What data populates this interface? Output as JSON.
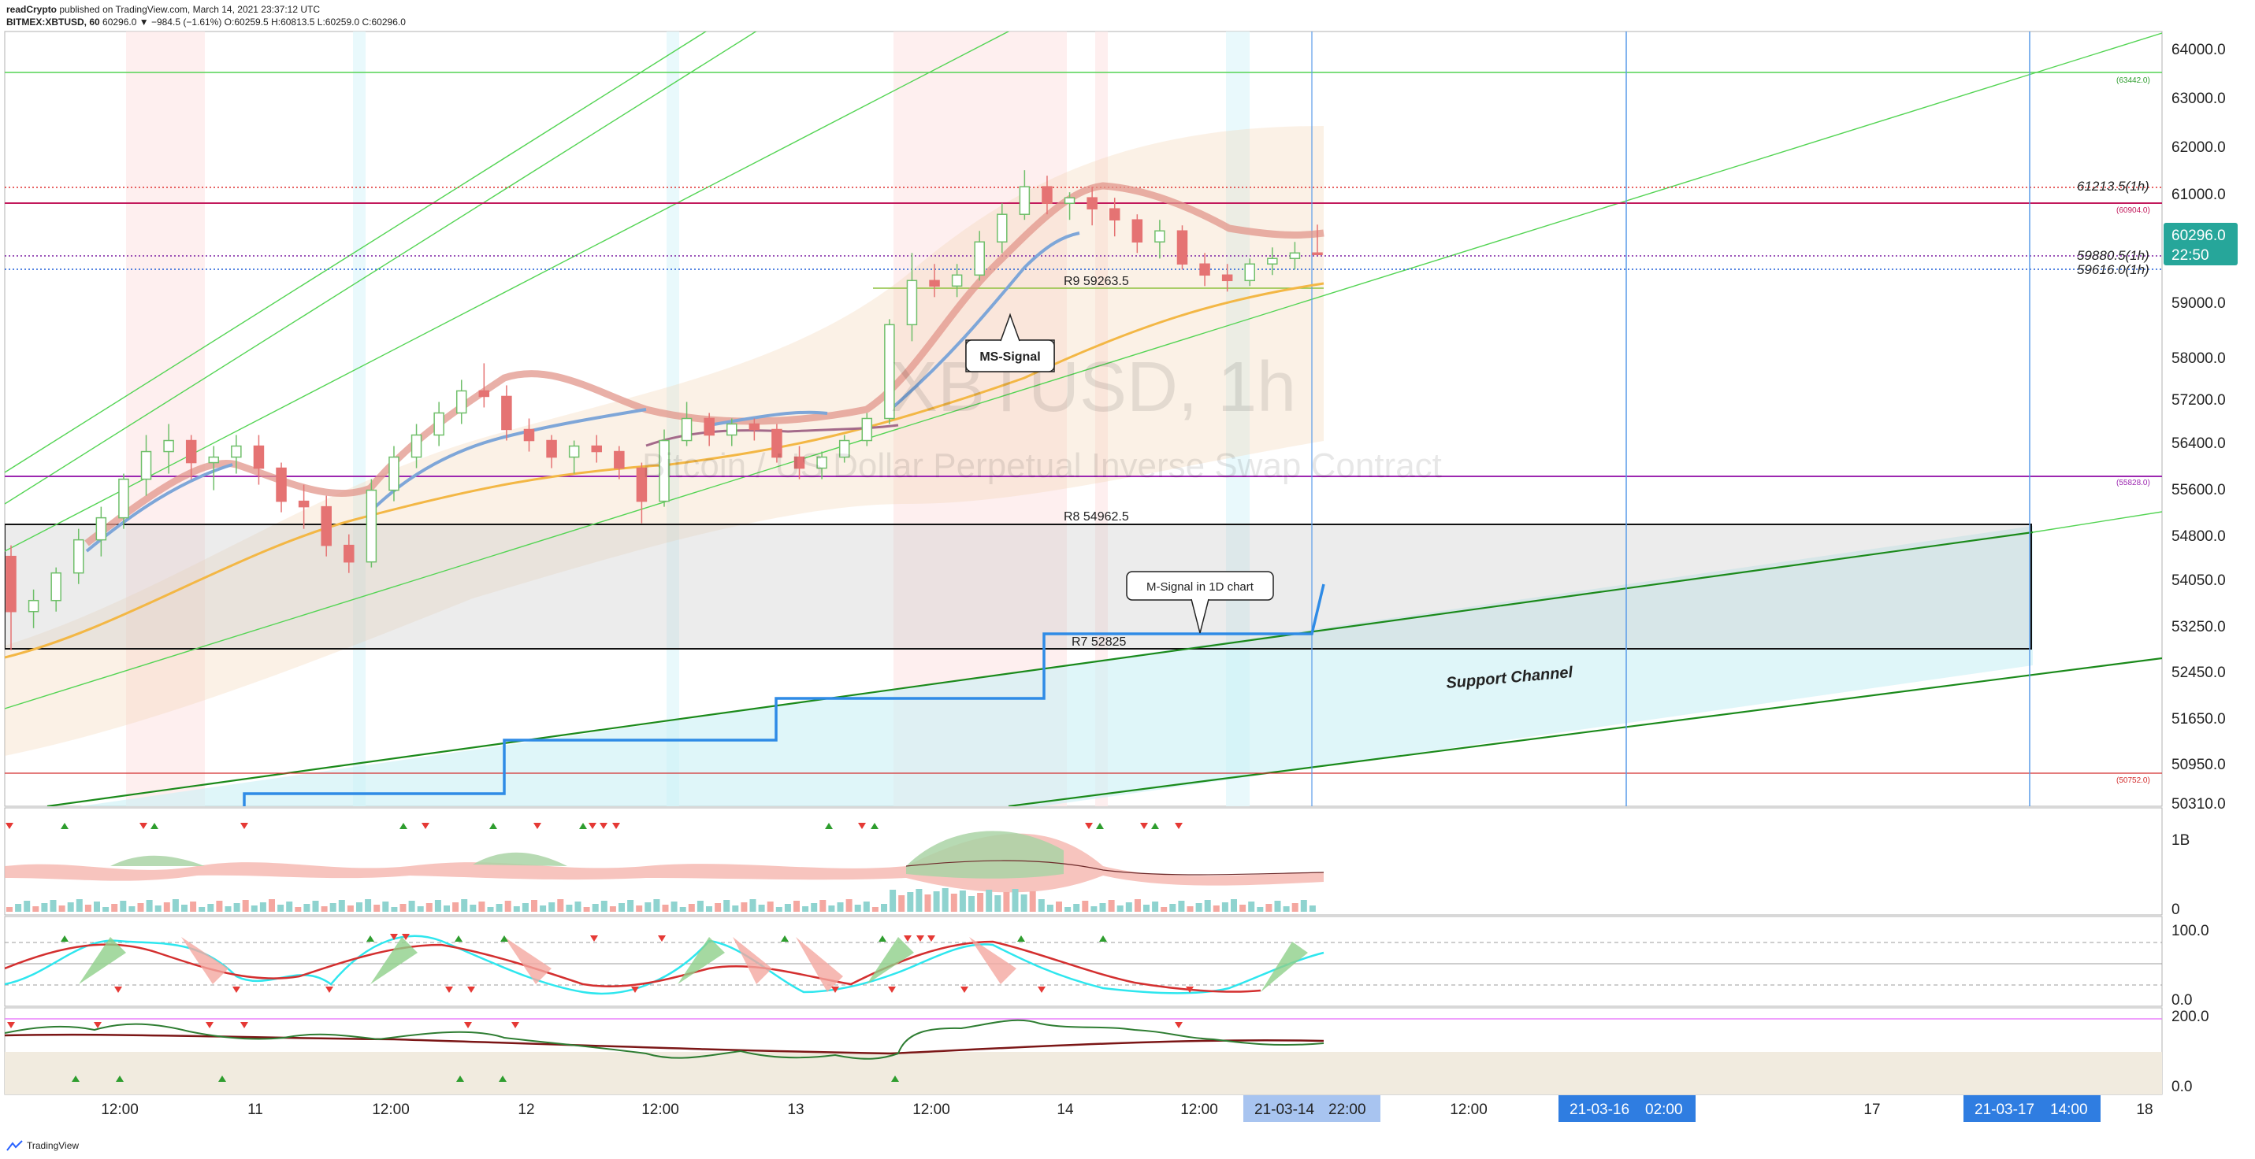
{
  "header": {
    "publisher": "readCrypto",
    "published_text": "published on TradingView.com, March 14, 2021 23:37:12 UTC",
    "symbol_line": "BITMEX:XBTUSD, 60",
    "ohlc_line": "60296.0 ▼ −984.5 (−1.61%) O:60259.5 H:60813.5 L:60259.0 C:60296.0"
  },
  "watermark": {
    "symbol": "XBTUSD, 1h",
    "description": "Bitcoin / US Dollar Perpetual Inverse Swap Contract"
  },
  "price_axis": {
    "ticks": [
      "64000.0",
      "63000.0",
      "62000.0",
      "61000.0",
      "60000.0",
      "59000.0",
      "58000.0",
      "57200.0",
      "56400.0",
      "55600.0",
      "54800.0",
      "54050.0",
      "53250.0",
      "52450.0",
      "51650.0",
      "50950.0",
      "50310.0"
    ],
    "current_price": "60296.0",
    "countdown": "22:50"
  },
  "time_axis": {
    "labels": [
      "12:00",
      "11",
      "12:00",
      "12",
      "12:00",
      "13",
      "12:00",
      "14",
      "12:00",
      "12:00",
      "17",
      "18"
    ],
    "highlight_cursor": "21-03-14",
    "highlight_cursor_time": "22:00",
    "highlight_1": "21-03-16",
    "highlight_1_time": "02:00",
    "highlight_2": "21-03-17",
    "highlight_2_time": "14:00"
  },
  "levels": {
    "level_63442": "(63442.0)",
    "level_61213": "61213.5(1h)",
    "level_60904": "(60904.0)",
    "level_59880": "59880.5(1h)",
    "level_59616": "59616.0(1h)",
    "level_55828": "(55828.0)",
    "level_50752": "(50752.0)",
    "r9": "R9 59263.5",
    "r8": "R8 54962.5",
    "r7": "R7 52825"
  },
  "annotations": {
    "ms_signal": "MS-Signal",
    "m_signal": "M-Signal in 1D chart",
    "support_channel": "Support Channel"
  },
  "indicator_axes": {
    "volume_top": "1B",
    "volume_bottom": "0",
    "osc1_top": "100.0",
    "osc1_bottom": "0.0",
    "osc2_top": "200.0",
    "osc2_bottom": "0.0"
  },
  "footer": {
    "brand": "TradingView"
  },
  "colors": {
    "up": "#4caf50",
    "down": "#ef5350",
    "cursor_tag": "#a8c4f0",
    "highlight_tag": "#2f7de1",
    "current_price_tag": "#26a69a",
    "ms_signal_line": "#7ea6d8",
    "m_signal_line": "#2f8be6"
  },
  "chart_data": {
    "type": "candlestick",
    "symbol": "XBTUSD",
    "timeframe": "1h",
    "ylim": [
      50000,
      64300
    ],
    "ohlc": [
      [
        54800,
        55000,
        53100,
        53800
      ],
      [
        53800,
        54200,
        53500,
        54000
      ],
      [
        54000,
        54600,
        53800,
        54500
      ],
      [
        54500,
        55300,
        54300,
        55100
      ],
      [
        55100,
        55700,
        54800,
        55500
      ],
      [
        55500,
        56300,
        55300,
        56200
      ],
      [
        56200,
        57000,
        55900,
        56700
      ],
      [
        56700,
        57200,
        56300,
        56900
      ],
      [
        56900,
        57000,
        56200,
        56500
      ],
      [
        56500,
        56800,
        56000,
        56600
      ],
      [
        56600,
        57000,
        56300,
        56800
      ],
      [
        56800,
        57000,
        56100,
        56400
      ],
      [
        56400,
        56500,
        55600,
        55800
      ],
      [
        55800,
        56100,
        55300,
        55700
      ],
      [
        55700,
        55900,
        54800,
        55000
      ],
      [
        55000,
        55200,
        54500,
        54700
      ],
      [
        54700,
        56200,
        54600,
        56000
      ],
      [
        56000,
        56800,
        55800,
        56600
      ],
      [
        56600,
        57200,
        56400,
        57000
      ],
      [
        57000,
        57600,
        56800,
        57400
      ],
      [
        57400,
        58000,
        57200,
        57800
      ],
      [
        57800,
        58300,
        57500,
        57700
      ],
      [
        57700,
        57900,
        56900,
        57100
      ],
      [
        57100,
        57300,
        56700,
        56900
      ],
      [
        56900,
        57000,
        56400,
        56600
      ],
      [
        56600,
        56900,
        56300,
        56800
      ],
      [
        56800,
        57000,
        56500,
        56700
      ],
      [
        56700,
        56800,
        56200,
        56400
      ],
      [
        56400,
        56500,
        55400,
        55800
      ],
      [
        55800,
        57100,
        55700,
        56900
      ],
      [
        56900,
        57600,
        56800,
        57300
      ],
      [
        57300,
        57400,
        56800,
        57000
      ],
      [
        57000,
        57300,
        56800,
        57200
      ],
      [
        57200,
        57300,
        56900,
        57100
      ],
      [
        57100,
        57200,
        56500,
        56600
      ],
      [
        56600,
        56800,
        56200,
        56400
      ],
      [
        56400,
        56700,
        56200,
        56600
      ],
      [
        56600,
        57000,
        56500,
        56900
      ],
      [
        56900,
        57400,
        56800,
        57300
      ],
      [
        57300,
        59100,
        57200,
        59000
      ],
      [
        59000,
        60300,
        58700,
        59800
      ],
      [
        59800,
        60100,
        59500,
        59700
      ],
      [
        59700,
        60100,
        59500,
        59900
      ],
      [
        59900,
        60700,
        59800,
        60500
      ],
      [
        60500,
        61200,
        60300,
        61000
      ],
      [
        61000,
        61800,
        60900,
        61500
      ],
      [
        61500,
        61700,
        61000,
        61200
      ],
      [
        61200,
        61400,
        60900,
        61300
      ],
      [
        61300,
        61500,
        60800,
        61100
      ],
      [
        61100,
        61300,
        60600,
        60900
      ],
      [
        60900,
        61000,
        60300,
        60500
      ],
      [
        60500,
        60900,
        60200,
        60700
      ],
      [
        60700,
        60800,
        60000,
        60100
      ],
      [
        60100,
        60300,
        59700,
        59900
      ],
      [
        59900,
        60100,
        59600,
        59800
      ],
      [
        59800,
        60200,
        59700,
        60100
      ],
      [
        60100,
        60400,
        59900,
        60200
      ],
      [
        60200,
        60500,
        60000,
        60300
      ],
      [
        60300,
        60813.5,
        60259,
        60296
      ]
    ],
    "horizontal_levels": [
      63442.0,
      61213.5,
      60904.0,
      59880.5,
      59616.0,
      59263.5,
      55828.0,
      54962.5,
      52825,
      50752.0
    ],
    "m_signal_1d_steps": [
      50310,
      50310,
      51300,
      51300,
      51950,
      51950,
      53100,
      53100,
      53900
    ],
    "support_zone": [
      52825,
      54962.5
    ]
  }
}
